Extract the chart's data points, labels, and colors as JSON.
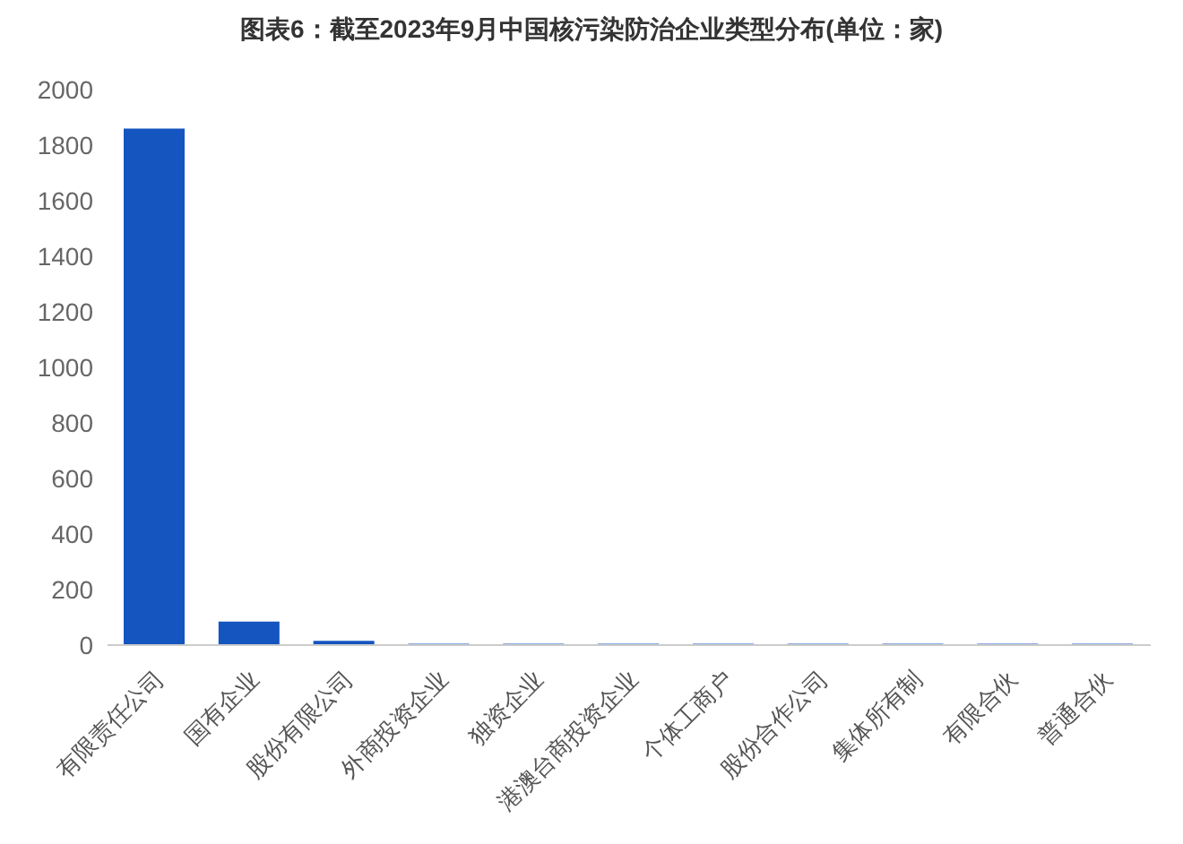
{
  "chart_data": {
    "type": "bar",
    "title": "图表6：截至2023年9月中国核污染防治企业类型分布(单位：家)",
    "categories": [
      "有限责任公司",
      "国有企业",
      "股份有限公司",
      "外商投资企业",
      "独资企业",
      "港澳台商投资企业",
      "个体工商户",
      "股份合作公司",
      "集体所有制",
      "有限合伙",
      "普通合伙"
    ],
    "values": [
      1860,
      85,
      15,
      5,
      5,
      5,
      5,
      5,
      5,
      5,
      5
    ],
    "color": "#1455c0",
    "ylim": [
      0,
      2000
    ],
    "yticks": [
      0,
      200,
      400,
      600,
      800,
      1000,
      1200,
      1400,
      1600,
      1800,
      2000
    ],
    "grid": false
  }
}
